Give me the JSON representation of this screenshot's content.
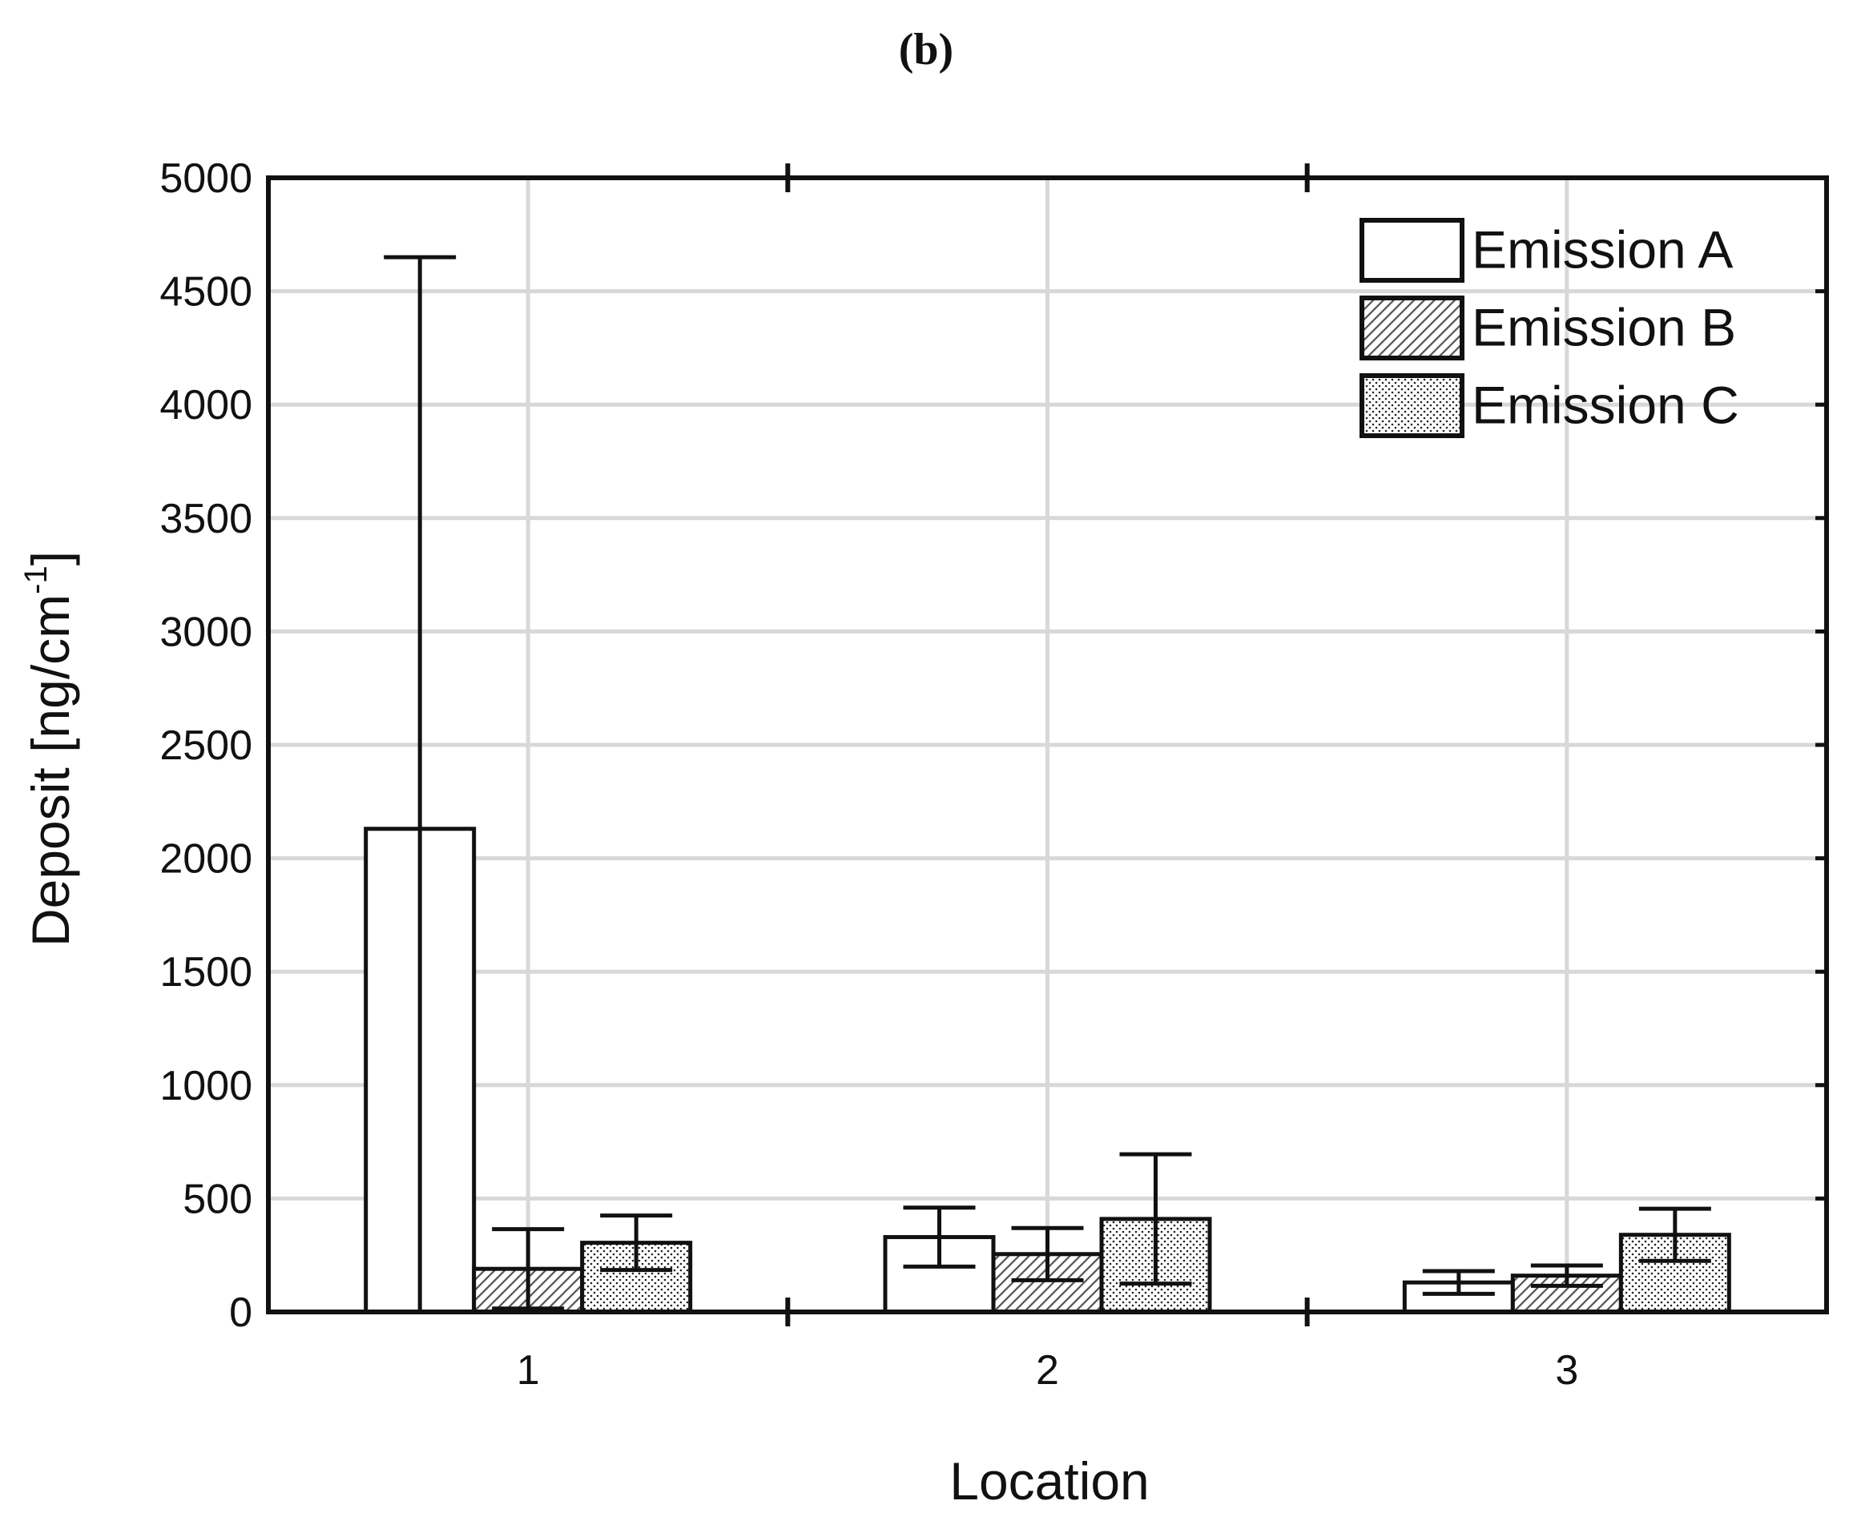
{
  "chart_data": {
    "type": "bar",
    "panel_label": "(b)",
    "xlabel": "Location",
    "ylabel": "Deposit [ng/cm",
    "ylabel_superscript": "-1",
    "ylabel_close": "]",
    "ylim": [
      0,
      5000
    ],
    "yticks": [
      0,
      500,
      1000,
      1500,
      2000,
      2500,
      3000,
      3500,
      4000,
      4500,
      5000
    ],
    "categories": [
      "1",
      "2",
      "3"
    ],
    "grid": true,
    "legend_position": "top-right",
    "series": [
      {
        "name": "Emission A",
        "pattern": "none",
        "values": [
          2130,
          330,
          130
        ],
        "error": [
          2520,
          130,
          50
        ]
      },
      {
        "name": "Emission B",
        "pattern": "hatch",
        "values": [
          190,
          255,
          160
        ],
        "error": [
          175,
          115,
          45
        ]
      },
      {
        "name": "Emission C",
        "pattern": "dots",
        "values": [
          305,
          410,
          340
        ],
        "error": [
          120,
          285,
          115
        ]
      }
    ],
    "colors": {
      "bar_stroke": "#111111",
      "grid": "#d8d8d8",
      "hatch_stroke": "#444444"
    }
  }
}
